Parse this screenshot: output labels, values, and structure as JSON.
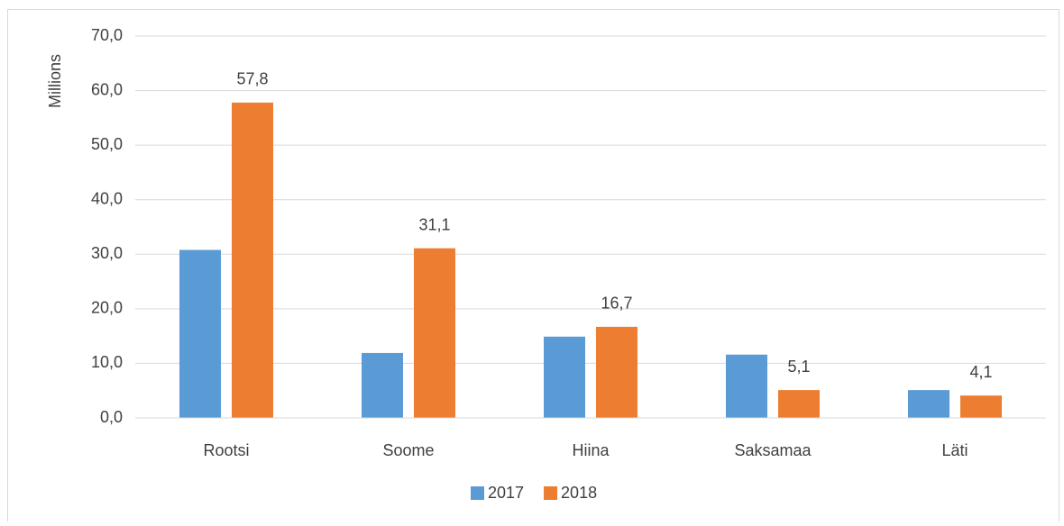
{
  "chart_data": {
    "type": "bar",
    "y_label": "Millions",
    "categories": [
      "Rootsi",
      "Soome",
      "Hiina",
      "Saksamaa",
      "Läti"
    ],
    "series": [
      {
        "name": "2017",
        "color": "#5b9bd5",
        "values": [
          30.8,
          11.9,
          14.9,
          11.6,
          5.1
        ]
      },
      {
        "name": "2018",
        "color": "#ed7d31",
        "values": [
          57.8,
          31.1,
          16.7,
          5.1,
          4.1
        ],
        "value_labels": [
          "57,8",
          "31,1",
          "16,7",
          "5,1",
          "4,1"
        ]
      }
    ],
    "ylim": [
      0,
      70
    ],
    "yticks": [
      {
        "value": 0,
        "label": "0,0"
      },
      {
        "value": 10,
        "label": "10,0"
      },
      {
        "value": 20,
        "label": "20,0"
      },
      {
        "value": 30,
        "label": "30,0"
      },
      {
        "value": 40,
        "label": "40,0"
      },
      {
        "value": 50,
        "label": "50,0"
      },
      {
        "value": 60,
        "label": "60,0"
      },
      {
        "value": 70,
        "label": "70,0"
      }
    ],
    "grid": true,
    "legend": "bottom"
  }
}
